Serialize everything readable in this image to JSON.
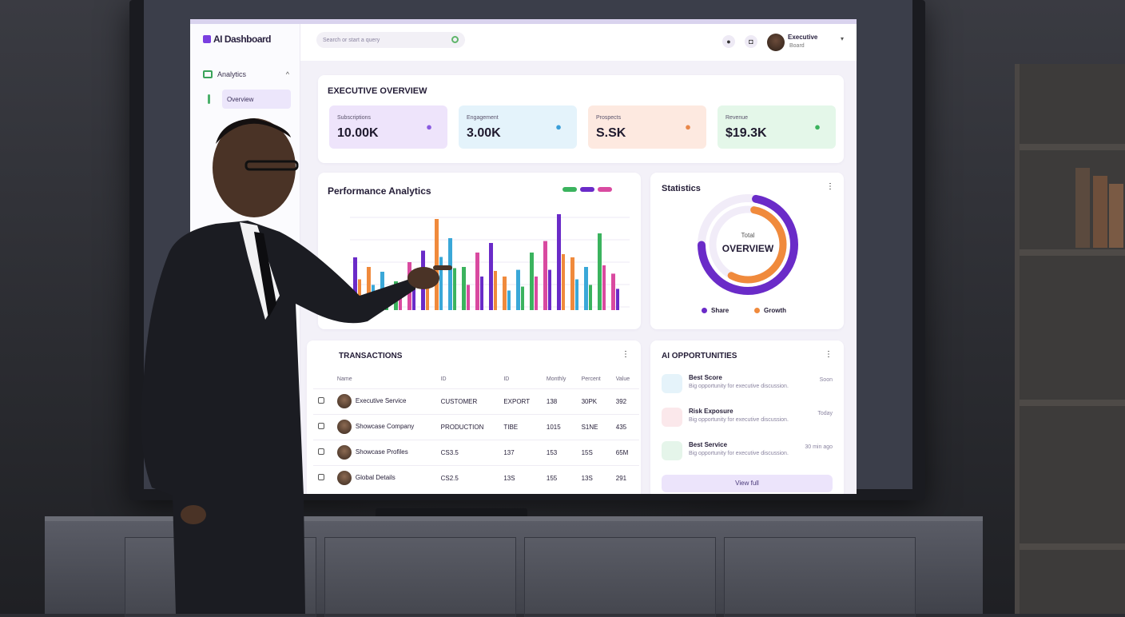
{
  "sidebar": {
    "logo": "AI Dashboard",
    "group_label": "Analytics",
    "group_chevron": "^",
    "active_item": "Overview"
  },
  "topbar": {
    "search_placeholder": "Search or start a query",
    "user_name": "Executive",
    "user_role": "Board"
  },
  "overview": {
    "title": "EXECUTIVE OVERVIEW",
    "stats": [
      {
        "label": "Subscriptions",
        "value": "10.00K",
        "bg": "#eee4fb",
        "icon_color": "#8a5be0"
      },
      {
        "label": "Engagement",
        "value": "3.00K",
        "bg": "#e4f3fb",
        "icon_color": "#3a9ed8"
      },
      {
        "label": "Prospects",
        "value": "S.SK",
        "bg": "#fde9e0",
        "icon_color": "#e8874a"
      },
      {
        "label": "Revenue",
        "value": "$19.3K",
        "bg": "#e4f7e9",
        "icon_color": "#3bb35e"
      }
    ]
  },
  "chart_panel": {
    "title": "Performance Analytics",
    "colors": [
      "#6a2bc8",
      "#f08a3c",
      "#3aa8d8",
      "#3bb35e",
      "#d94aa0"
    ]
  },
  "donut_panel": {
    "title": "Statistics",
    "menu": "⋮",
    "center_label": "Total",
    "center_value": "OVERVIEW",
    "legend": [
      {
        "label": "Share",
        "color": "#6a2bc8",
        "fraction": 0.72
      },
      {
        "label": "Growth",
        "color": "#f08a3c",
        "fraction": 0.55
      }
    ]
  },
  "transactions": {
    "title": "TRANSACTIONS",
    "menu": "⋮",
    "columns": [
      "",
      "Name",
      "ID",
      "ID",
      "Monthly",
      "Percent",
      "Value"
    ],
    "rows": [
      {
        "name": "Executive Service",
        "c2": "CUSTOMER",
        "c3": "EXPORT",
        "c4": "138",
        "c5": "30PK",
        "c6": "392"
      },
      {
        "name": "Showcase Company",
        "c2": "PRODUCTION",
        "c3": "TIBE",
        "c4": "1015",
        "c5": "S1NE",
        "c6": "435"
      },
      {
        "name": "Showcase Profiles",
        "c2": "CS3.5",
        "c3": "137",
        "c4": "153",
        "c5": "15S",
        "c6": "65M"
      },
      {
        "name": "Global Details",
        "c2": "CS2.5",
        "c3": "13S",
        "c4": "155",
        "c5": "13S",
        "c6": "291"
      }
    ]
  },
  "activity": {
    "title": "AI OPPORTUNITIES",
    "menu": "⋮",
    "items": [
      {
        "title": "Best Score",
        "sub": "Big opportunity for executive discussion.",
        "time": "Soon",
        "color": "#3aa8d8"
      },
      {
        "title": "Risk Exposure",
        "sub": "Big opportunity for executive discussion.",
        "time": "Today",
        "color": "#e0506a"
      },
      {
        "title": "Best Service",
        "sub": "Big opportunity for executive discussion.",
        "time": "30 min ago",
        "color": "#3bb35e"
      }
    ],
    "view_all": "View full"
  }
}
